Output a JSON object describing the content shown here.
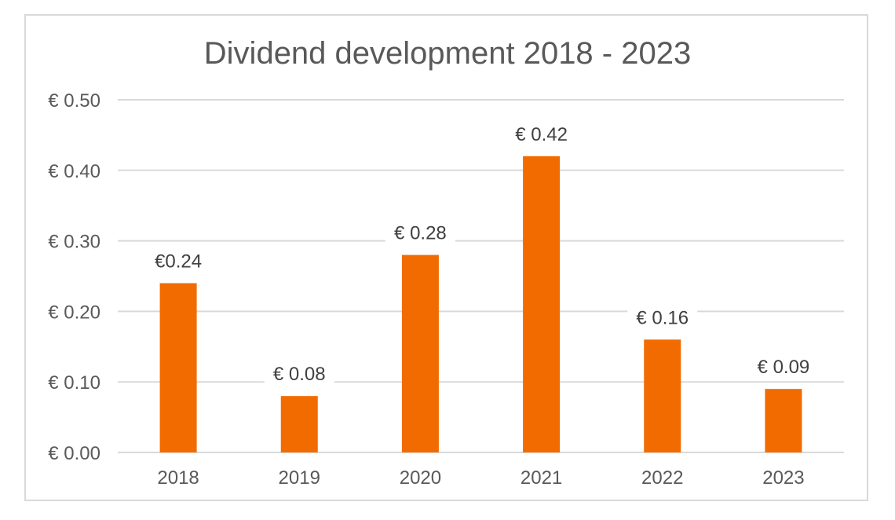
{
  "chart_data": {
    "type": "bar",
    "title": "Dividend development 2018 - 2023",
    "xlabel": "",
    "ylabel": "",
    "categories": [
      "2018",
      "2019",
      "2020",
      "2021",
      "2022",
      "2023"
    ],
    "values": [
      0.24,
      0.08,
      0.28,
      0.42,
      0.16,
      0.09
    ],
    "data_labels": [
      "€0.24",
      "€ 0.08",
      "€ 0.28",
      "€ 0.42",
      "€ 0.16",
      "€ 0.09"
    ],
    "ylim": [
      0,
      0.5
    ],
    "yticks": [
      0,
      0.1,
      0.2,
      0.3,
      0.4,
      0.5
    ],
    "ytick_labels": [
      "€ 0.00",
      "€ 0.10",
      "€ 0.20",
      "€ 0.30",
      "€ 0.40",
      "€ 0.50"
    ],
    "grid": true,
    "legend": "none",
    "colors": {
      "bar": "#f26b00",
      "grid": "#d9d9d9",
      "text": "#595959",
      "border": "#d9d9d9"
    }
  }
}
